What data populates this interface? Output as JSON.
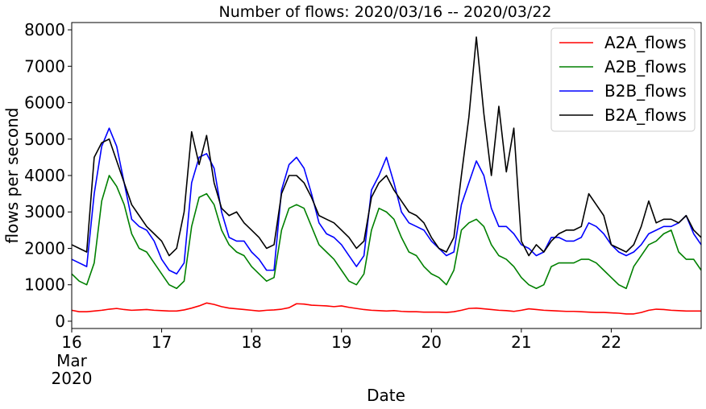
{
  "chart_data": {
    "type": "line",
    "title": "Number of flows: 2020/03/16 -- 2020/03/22",
    "xlabel": "Date",
    "ylabel": "flows per second",
    "xlim": [
      "2020-03-16T00:00",
      "2020-03-23T00:00"
    ],
    "ylim": [
      -200,
      8200
    ],
    "yticks": [
      0,
      1000,
      2000,
      3000,
      4000,
      5000,
      6000,
      7000,
      8000
    ],
    "xticks": [
      {
        "x": "2020-03-16",
        "label": "16",
        "sub1": "Mar",
        "sub2": "2020"
      },
      {
        "x": "2020-03-17",
        "label": "17"
      },
      {
        "x": "2020-03-18",
        "label": "18"
      },
      {
        "x": "2020-03-19",
        "label": "19"
      },
      {
        "x": "2020-03-20",
        "label": "20"
      },
      {
        "x": "2020-03-21",
        "label": "21"
      },
      {
        "x": "2020-03-22",
        "label": "22"
      }
    ],
    "grid": false,
    "legend": "upper-right",
    "x": [
      "2020-03-16T00:00",
      "2020-03-16T02:00",
      "2020-03-16T04:00",
      "2020-03-16T06:00",
      "2020-03-16T08:00",
      "2020-03-16T10:00",
      "2020-03-16T12:00",
      "2020-03-16T14:00",
      "2020-03-16T16:00",
      "2020-03-16T18:00",
      "2020-03-16T20:00",
      "2020-03-16T22:00",
      "2020-03-17T00:00",
      "2020-03-17T02:00",
      "2020-03-17T04:00",
      "2020-03-17T06:00",
      "2020-03-17T08:00",
      "2020-03-17T10:00",
      "2020-03-17T12:00",
      "2020-03-17T14:00",
      "2020-03-17T16:00",
      "2020-03-17T18:00",
      "2020-03-17T20:00",
      "2020-03-17T22:00",
      "2020-03-18T00:00",
      "2020-03-18T02:00",
      "2020-03-18T04:00",
      "2020-03-18T06:00",
      "2020-03-18T08:00",
      "2020-03-18T10:00",
      "2020-03-18T12:00",
      "2020-03-18T14:00",
      "2020-03-18T16:00",
      "2020-03-18T18:00",
      "2020-03-18T20:00",
      "2020-03-18T22:00",
      "2020-03-19T00:00",
      "2020-03-19T02:00",
      "2020-03-19T04:00",
      "2020-03-19T06:00",
      "2020-03-19T08:00",
      "2020-03-19T10:00",
      "2020-03-19T12:00",
      "2020-03-19T14:00",
      "2020-03-19T16:00",
      "2020-03-19T18:00",
      "2020-03-19T20:00",
      "2020-03-19T22:00",
      "2020-03-20T00:00",
      "2020-03-20T02:00",
      "2020-03-20T04:00",
      "2020-03-20T06:00",
      "2020-03-20T08:00",
      "2020-03-20T10:00",
      "2020-03-20T12:00",
      "2020-03-20T14:00",
      "2020-03-20T16:00",
      "2020-03-20T18:00",
      "2020-03-20T20:00",
      "2020-03-20T22:00",
      "2020-03-21T00:00",
      "2020-03-21T02:00",
      "2020-03-21T04:00",
      "2020-03-21T06:00",
      "2020-03-21T08:00",
      "2020-03-21T10:00",
      "2020-03-21T12:00",
      "2020-03-21T14:00",
      "2020-03-21T16:00",
      "2020-03-21T18:00",
      "2020-03-21T20:00",
      "2020-03-21T22:00",
      "2020-03-22T00:00",
      "2020-03-22T02:00",
      "2020-03-22T04:00",
      "2020-03-22T06:00",
      "2020-03-22T08:00",
      "2020-03-22T10:00",
      "2020-03-22T12:00",
      "2020-03-22T14:00",
      "2020-03-22T16:00",
      "2020-03-22T18:00",
      "2020-03-22T20:00",
      "2020-03-22T22:00",
      "2020-03-23T00:00"
    ],
    "series": [
      {
        "name": "A2A_flows",
        "color": "#ff0000",
        "values": [
          300,
          260,
          260,
          280,
          300,
          330,
          350,
          320,
          300,
          310,
          320,
          300,
          290,
          280,
          280,
          310,
          360,
          420,
          500,
          460,
          400,
          360,
          340,
          320,
          300,
          280,
          300,
          310,
          330,
          370,
          480,
          470,
          440,
          430,
          420,
          400,
          420,
          380,
          350,
          320,
          300,
          290,
          280,
          290,
          270,
          260,
          260,
          250,
          250,
          250,
          240,
          260,
          300,
          350,
          360,
          340,
          320,
          300,
          290,
          270,
          300,
          340,
          320,
          300,
          290,
          280,
          270,
          270,
          260,
          250,
          240,
          240,
          230,
          220,
          200,
          200,
          240,
          300,
          330,
          320,
          300,
          290,
          280,
          280,
          280
        ]
      },
      {
        "name": "A2B_flows",
        "color": "#008000",
        "values": [
          1300,
          1100,
          1000,
          1600,
          3300,
          4000,
          3700,
          3200,
          2400,
          2000,
          1900,
          1600,
          1300,
          1000,
          900,
          1100,
          2600,
          3400,
          3500,
          3200,
          2500,
          2100,
          1900,
          1800,
          1500,
          1300,
          1100,
          1200,
          2500,
          3100,
          3200,
          3100,
          2600,
          2100,
          1900,
          1700,
          1400,
          1100,
          1000,
          1300,
          2500,
          3100,
          3000,
          2800,
          2300,
          1900,
          1800,
          1500,
          1300,
          1200,
          1000,
          1400,
          2500,
          2700,
          2800,
          2600,
          2100,
          1800,
          1700,
          1500,
          1200,
          1000,
          900,
          1000,
          1500,
          1600,
          1600,
          1600,
          1700,
          1700,
          1600,
          1400,
          1200,
          1000,
          900,
          1500,
          1800,
          2100,
          2200,
          2400,
          2500,
          1900,
          1700,
          1700,
          1400
        ]
      },
      {
        "name": "B2B_flows",
        "color": "#0000ff",
        "values": [
          1700,
          1600,
          1500,
          3500,
          4800,
          5300,
          4800,
          3800,
          2800,
          2600,
          2500,
          2200,
          1700,
          1400,
          1300,
          1600,
          3800,
          4500,
          4600,
          4200,
          3000,
          2300,
          2200,
          2200,
          1900,
          1700,
          1400,
          1400,
          3600,
          4300,
          4500,
          4200,
          3500,
          2700,
          2400,
          2300,
          2100,
          1800,
          1500,
          1800,
          3600,
          4000,
          4500,
          3800,
          3000,
          2700,
          2600,
          2500,
          2200,
          2000,
          1800,
          1900,
          3200,
          3800,
          4400,
          4000,
          3100,
          2600,
          2600,
          2400,
          2100,
          2000,
          1800,
          1900,
          2300,
          2300,
          2200,
          2200,
          2300,
          2700,
          2600,
          2400,
          2100,
          1900,
          1800,
          1900,
          2100,
          2400,
          2500,
          2600,
          2600,
          2700,
          2900,
          2400,
          2100
        ]
      },
      {
        "name": "B2A_flows",
        "color": "#000000",
        "values": [
          2100,
          2000,
          1900,
          4500,
          4900,
          5000,
          4400,
          3800,
          3200,
          2900,
          2600,
          2400,
          2200,
          1800,
          2000,
          3000,
          5200,
          4300,
          5100,
          3800,
          3100,
          2900,
          3000,
          2700,
          2500,
          2300,
          2000,
          2100,
          3500,
          4000,
          4000,
          3800,
          3400,
          2900,
          2800,
          2700,
          2500,
          2300,
          2000,
          2200,
          3400,
          3800,
          4000,
          3600,
          3300,
          3000,
          2900,
          2700,
          2300,
          2000,
          1900,
          2300,
          4000,
          5600,
          7800,
          5700,
          4000,
          5900,
          4100,
          5300,
          2200,
          1800,
          2100,
          1900,
          2200,
          2400,
          2500,
          2500,
          2600,
          3500,
          3200,
          2900,
          2100,
          2000,
          1900,
          2100,
          2600,
          3300,
          2700,
          2800,
          2800,
          2700,
          2900,
          2500,
          2300
        ]
      }
    ]
  }
}
